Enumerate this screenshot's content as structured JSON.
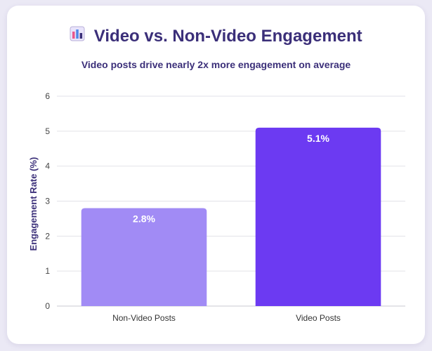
{
  "header": {
    "title": "Video vs. Non-Video Engagement",
    "subtitle": "Video posts drive nearly 2x more engagement on average",
    "icon": "bar-chart-icon"
  },
  "colors": {
    "title": "#3b2f79",
    "non_video_bar": "#a18bf5",
    "video_bar": "#6c3af2",
    "grid": "#e2e2e8"
  },
  "chart_data": {
    "type": "bar",
    "title": "Video vs. Non-Video Engagement",
    "subtitle": "Video posts drive nearly 2x more engagement on average",
    "categories": [
      "Non-Video Posts",
      "Video Posts"
    ],
    "values": [
      2.8,
      5.1
    ],
    "data_labels": [
      "2.8%",
      "5.1%"
    ],
    "bar_colors": [
      "#a18bf5",
      "#6c3af2"
    ],
    "xlabel": "",
    "ylabel": "Engagement Rate (%)",
    "ylim": [
      0,
      6
    ],
    "yticks": [
      0,
      1,
      2,
      3,
      4,
      5,
      6
    ],
    "grid": true,
    "legend": false
  }
}
